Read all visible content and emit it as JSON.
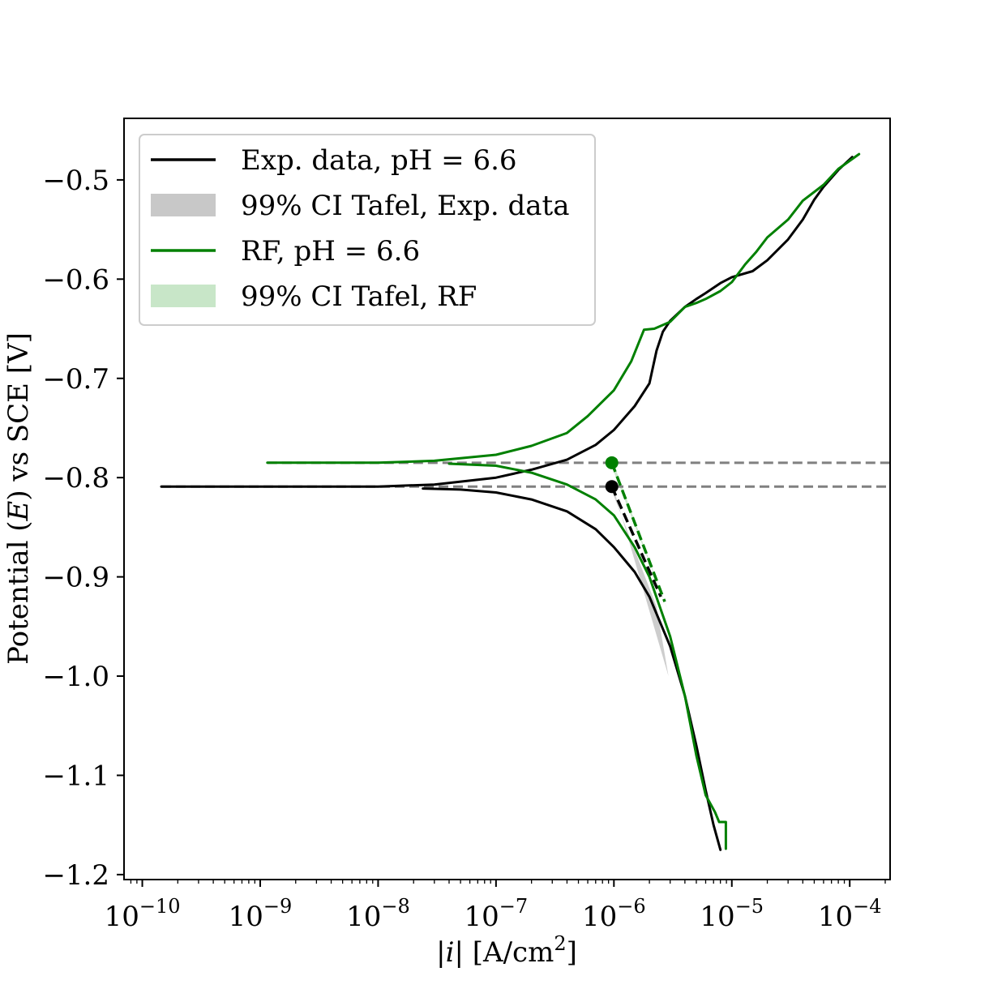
{
  "chart_data": {
    "type": "line",
    "x_scale": "log",
    "xlim": [
      7e-11,
      0.00022
    ],
    "ylim": [
      -1.205,
      -0.438
    ],
    "xlabel": "|i| [A/cm²]",
    "xlabel_parts": {
      "open": "|",
      "var": "i",
      "close": "| [A/cm",
      "sup": "2",
      "end": "]"
    },
    "ylabel": "Potential (E) vs SCE [V]",
    "ylabel_parts": {
      "pre": "Potential (",
      "var": "E",
      "post": ") vs SCE [V]"
    },
    "x_ticks": [
      {
        "value": 1e-10,
        "label": "10",
        "exp": "−10"
      },
      {
        "value": 1e-09,
        "label": "10",
        "exp": "−9"
      },
      {
        "value": 1e-08,
        "label": "10",
        "exp": "−8"
      },
      {
        "value": 1e-07,
        "label": "10",
        "exp": "−7"
      },
      {
        "value": 1e-06,
        "label": "10",
        "exp": "−6"
      },
      {
        "value": 1e-05,
        "label": "10",
        "exp": "−5"
      },
      {
        "value": 0.0001,
        "label": "10",
        "exp": "−4"
      }
    ],
    "y_ticks": [
      {
        "value": -0.5,
        "label": "−0.5"
      },
      {
        "value": -0.6,
        "label": "−0.6"
      },
      {
        "value": -0.7,
        "label": "−0.7"
      },
      {
        "value": -0.8,
        "label": "−0.8"
      },
      {
        "value": -0.9,
        "label": "−0.9"
      },
      {
        "value": -1.0,
        "label": "−1.0"
      },
      {
        "value": -1.1,
        "label": "−1.1"
      },
      {
        "value": -1.2,
        "label": "−1.2"
      }
    ],
    "grid": false,
    "legend_position": "top-left",
    "colors": {
      "exp": "#000000",
      "rf": "#008000",
      "ci_exp": "#c8c8c8",
      "ci_rf": "#c8e6c8",
      "corrosion_line": "#808080"
    },
    "legend": [
      {
        "label": "Exp. data, pH = 6.6",
        "kind": "line",
        "color": "#000000"
      },
      {
        "label": "99% CI Tafel, Exp. data",
        "kind": "patch",
        "color": "#c8c8c8"
      },
      {
        "label": "RF, pH = 6.6",
        "kind": "line",
        "color": "#008000"
      },
      {
        "label": "99% CI Tafel, RF",
        "kind": "patch",
        "color": "#c8e6c8"
      }
    ],
    "series": [
      {
        "name": "Exp. data, pH = 6.6",
        "color": "#000000",
        "branch": "anodic",
        "points": [
          [
            1.45e-10,
            -0.809
          ],
          [
            1e-09,
            -0.809
          ],
          [
            1e-08,
            -0.809
          ],
          [
            3e-08,
            -0.807
          ],
          [
            1e-07,
            -0.8
          ],
          [
            2e-07,
            -0.792
          ],
          [
            4e-07,
            -0.782
          ],
          [
            7e-07,
            -0.767
          ],
          [
            1e-06,
            -0.752
          ],
          [
            1.5e-06,
            -0.728
          ],
          [
            2e-06,
            -0.705
          ],
          [
            2.3e-06,
            -0.672
          ],
          [
            2.6e-06,
            -0.653
          ],
          [
            3e-06,
            -0.642
          ],
          [
            4e-06,
            -0.628
          ],
          [
            5e-06,
            -0.62
          ],
          [
            6e-06,
            -0.614
          ],
          [
            8e-06,
            -0.604
          ],
          [
            1e-05,
            -0.598
          ],
          [
            1.5e-05,
            -0.592
          ],
          [
            2e-05,
            -0.581
          ],
          [
            3e-05,
            -0.56
          ],
          [
            4e-05,
            -0.54
          ],
          [
            5e-05,
            -0.52
          ],
          [
            6e-05,
            -0.507
          ],
          [
            8e-05,
            -0.49
          ],
          [
            0.000105,
            -0.477
          ]
        ]
      },
      {
        "name": "Exp. data, pH = 6.6",
        "color": "#000000",
        "branch": "cathodic",
        "points": [
          [
            2.4e-08,
            -0.811
          ],
          [
            5e-08,
            -0.812
          ],
          [
            1e-07,
            -0.815
          ],
          [
            2e-07,
            -0.822
          ],
          [
            4e-07,
            -0.834
          ],
          [
            7e-07,
            -0.852
          ],
          [
            1e-06,
            -0.87
          ],
          [
            1.5e-06,
            -0.895
          ],
          [
            2e-06,
            -0.92
          ],
          [
            3e-06,
            -0.97
          ],
          [
            4e-06,
            -1.02
          ],
          [
            5e-06,
            -1.07
          ],
          [
            6e-06,
            -1.115
          ],
          [
            7e-06,
            -1.15
          ],
          [
            8e-06,
            -1.175
          ]
        ]
      },
      {
        "name": "RF, pH = 6.6",
        "color": "#008000",
        "branch": "anodic",
        "points": [
          [
            1.15e-09,
            -0.785
          ],
          [
            1e-08,
            -0.785
          ],
          [
            3e-08,
            -0.783
          ],
          [
            1e-07,
            -0.777
          ],
          [
            2e-07,
            -0.768
          ],
          [
            4e-07,
            -0.755
          ],
          [
            6e-07,
            -0.738
          ],
          [
            1e-06,
            -0.712
          ],
          [
            1.4e-06,
            -0.683
          ],
          [
            1.8e-06,
            -0.651
          ],
          [
            2.2e-06,
            -0.65
          ],
          [
            3e-06,
            -0.643
          ],
          [
            4e-06,
            -0.628
          ],
          [
            5e-06,
            -0.624
          ],
          [
            6e-06,
            -0.62
          ],
          [
            8e-06,
            -0.612
          ],
          [
            1e-05,
            -0.603
          ],
          [
            1.3e-05,
            -0.585
          ],
          [
            1.6e-05,
            -0.573
          ],
          [
            2e-05,
            -0.558
          ],
          [
            3e-05,
            -0.54
          ],
          [
            4e-05,
            -0.521
          ],
          [
            6e-05,
            -0.505
          ],
          [
            8e-05,
            -0.489
          ],
          [
            0.00012,
            -0.474
          ]
        ]
      },
      {
        "name": "RF, pH = 6.6",
        "color": "#008000",
        "branch": "cathodic",
        "points": [
          [
            4e-08,
            -0.786
          ],
          [
            1e-07,
            -0.788
          ],
          [
            2e-07,
            -0.795
          ],
          [
            4e-07,
            -0.807
          ],
          [
            7e-07,
            -0.822
          ],
          [
            1e-06,
            -0.838
          ],
          [
            1.5e-06,
            -0.87
          ],
          [
            2e-06,
            -0.9
          ],
          [
            3e-06,
            -0.96
          ],
          [
            4e-06,
            -1.02
          ],
          [
            5e-06,
            -1.08
          ],
          [
            6e-06,
            -1.12
          ],
          [
            7.2e-06,
            -1.137
          ],
          [
            7.8e-06,
            -1.147
          ],
          [
            8.9e-06,
            -1.147
          ],
          [
            8.9e-06,
            -1.174
          ]
        ]
      }
    ],
    "tafel_fits": [
      {
        "name": "99% CI Tafel, Exp. data",
        "color": "#000000",
        "band_color": "#c8c8c8",
        "line": [
          [
            9.6e-07,
            -0.809
          ],
          [
            2.5e-06,
            -0.92
          ]
        ],
        "band_upper": [
          [
            9.6e-07,
            -0.805
          ],
          [
            2.9e-06,
            -1.0
          ]
        ],
        "band_lower": [
          [
            9.6e-07,
            -0.813
          ],
          [
            2.3e-06,
            -0.93
          ]
        ],
        "marker": [
          9.6e-07,
          -0.809
        ]
      },
      {
        "name": "99% CI Tafel, RF",
        "color": "#008000",
        "band_color": "#c8e6c8",
        "line": [
          [
            9.6e-07,
            -0.785
          ],
          [
            2.7e-06,
            -0.925
          ]
        ],
        "band_upper": [
          [
            9.6e-07,
            -0.781
          ],
          [
            3e-06,
            -0.94
          ]
        ],
        "band_lower": [
          [
            9.6e-07,
            -0.789
          ],
          [
            2.4e-06,
            -0.91
          ]
        ],
        "marker": [
          9.6e-07,
          -0.785
        ]
      }
    ],
    "corrosion_potentials": [
      -0.785,
      -0.809
    ],
    "corrosion_x_start": [
      1.15e-09,
      1.45e-10
    ]
  }
}
